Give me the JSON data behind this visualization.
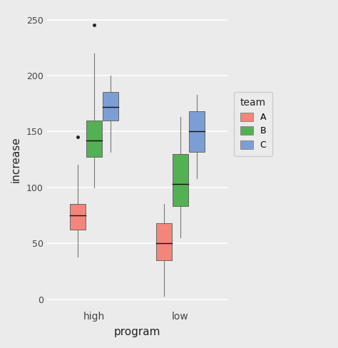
{
  "title": "",
  "xlabel": "program",
  "ylabel": "increase",
  "background_color": "#EBEBEB",
  "panel_color": "#EBEBEB",
  "grid_color": "#FFFFFF",
  "ylim": [
    -8,
    258
  ],
  "yticks": [
    0,
    50,
    100,
    150,
    200,
    250
  ],
  "programs": [
    "high",
    "low"
  ],
  "teams": [
    "A",
    "B",
    "C"
  ],
  "team_colors": {
    "A": "#F4857A",
    "B": "#53B053",
    "C": "#7B9FD4"
  },
  "box_data": {
    "high": {
      "A": {
        "q1": 62,
        "median": 75,
        "q3": 85,
        "whisker_low": 38,
        "whisker_high": 120,
        "outliers": [
          145
        ]
      },
      "B": {
        "q1": 127,
        "median": 142,
        "q3": 160,
        "whisker_low": 100,
        "whisker_high": 220,
        "outliers": [
          245
        ]
      },
      "C": {
        "q1": 160,
        "median": 172,
        "q3": 185,
        "whisker_low": 132,
        "whisker_high": 200,
        "outliers": []
      }
    },
    "low": {
      "A": {
        "q1": 35,
        "median": 50,
        "q3": 68,
        "whisker_low": 3,
        "whisker_high": 85,
        "outliers": []
      },
      "B": {
        "q1": 83,
        "median": 103,
        "q3": 130,
        "whisker_low": 55,
        "whisker_high": 163,
        "outliers": []
      },
      "C": {
        "q1": 132,
        "median": 150,
        "q3": 168,
        "whisker_low": 108,
        "whisker_high": 183,
        "outliers": []
      }
    }
  },
  "box_width": 0.18,
  "legend_title": "team"
}
